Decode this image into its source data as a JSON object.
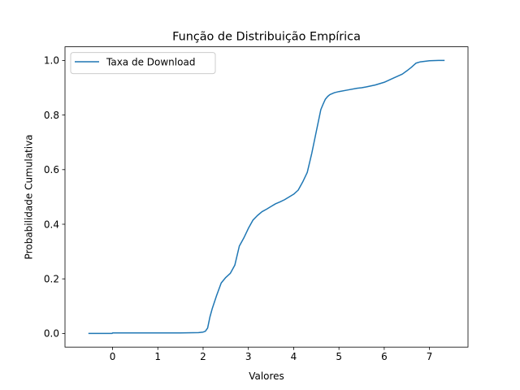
{
  "chart_data": {
    "type": "line",
    "title": "Função de Distribuição Empírica",
    "xlabel": "Valores",
    "ylabel": "Probabilidade Cumulativa",
    "xlim": [
      -1.05,
      7.85
    ],
    "ylim": [
      -0.05,
      1.05
    ],
    "xticks": [
      0,
      1,
      2,
      3,
      4,
      5,
      6,
      7
    ],
    "xtick_labels": [
      "0",
      "1",
      "2",
      "3",
      "4",
      "5",
      "6",
      "7"
    ],
    "yticks": [
      0.0,
      0.2,
      0.4,
      0.6,
      0.8,
      1.0
    ],
    "ytick_labels": [
      "0.0",
      "0.2",
      "0.4",
      "0.6",
      "0.8",
      "1.0"
    ],
    "grid": false,
    "legend_position": "top-left",
    "series": [
      {
        "name": "Taxa de Download",
        "color": "#1f77b4",
        "x": [
          -0.52,
          -0.01,
          0.0,
          0.5,
          1.0,
          1.5,
          1.9,
          2.0,
          2.05,
          2.1,
          2.15,
          2.2,
          2.3,
          2.4,
          2.5,
          2.6,
          2.7,
          2.8,
          2.9,
          3.0,
          3.1,
          3.2,
          3.3,
          3.4,
          3.5,
          3.6,
          3.7,
          3.8,
          3.9,
          4.0,
          4.1,
          4.2,
          4.3,
          4.4,
          4.5,
          4.6,
          4.65,
          4.7,
          4.75,
          4.8,
          4.9,
          5.0,
          5.2,
          5.4,
          5.5,
          5.6,
          5.8,
          6.0,
          6.2,
          6.4,
          6.5,
          6.6,
          6.7,
          6.8,
          7.0,
          7.2,
          7.32
        ],
        "y": [
          0.0,
          0.0,
          0.002,
          0.002,
          0.002,
          0.002,
          0.003,
          0.005,
          0.008,
          0.02,
          0.06,
          0.09,
          0.14,
          0.185,
          0.205,
          0.22,
          0.25,
          0.32,
          0.35,
          0.385,
          0.415,
          0.432,
          0.446,
          0.455,
          0.465,
          0.475,
          0.482,
          0.49,
          0.5,
          0.51,
          0.525,
          0.555,
          0.59,
          0.66,
          0.74,
          0.82,
          0.84,
          0.858,
          0.868,
          0.875,
          0.882,
          0.886,
          0.892,
          0.898,
          0.9,
          0.903,
          0.91,
          0.92,
          0.935,
          0.95,
          0.962,
          0.975,
          0.99,
          0.995,
          0.999,
          1.0,
          1.0
        ]
      }
    ]
  }
}
